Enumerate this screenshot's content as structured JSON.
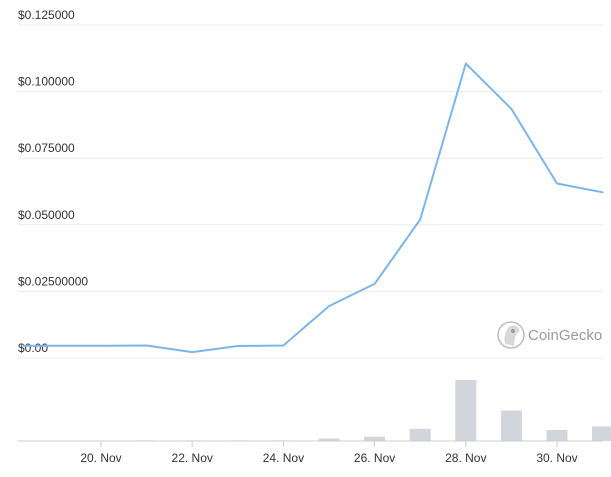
{
  "chart_data": {
    "type": "line",
    "title": "",
    "xlabel": "",
    "ylabel": "",
    "x_tick_labels": [
      "20. Nov",
      "22. Nov",
      "24. Nov",
      "26. Nov",
      "28. Nov",
      "30. Nov"
    ],
    "y_tick_labels": [
      "$0.00",
      "$0.02500000",
      "$0.050000",
      "$0.075000",
      "$0.100000",
      "$0.125000"
    ],
    "ylim": [
      0,
      0.125
    ],
    "x_days_nov": [
      18.3,
      20.1,
      21.0,
      22.0,
      23.0,
      24.0,
      25.0,
      26.0,
      27.0,
      28.0,
      29.0,
      30.0,
      31.0
    ],
    "price": [
      0.0046,
      0.0046,
      0.0047,
      0.0022,
      0.0045,
      0.0047,
      0.0195,
      0.0278,
      0.052,
      0.1105,
      0.0935,
      0.0655,
      0.0622
    ],
    "volume_bars": {
      "x_days_nov": [
        21.0,
        22.0,
        23.0,
        24.0,
        25.0,
        26.0,
        27.0,
        28.0,
        29.0,
        30.0,
        31.0
      ],
      "values": [
        0.01,
        0.003,
        0.002,
        0.004,
        0.04,
        0.07,
        0.2,
        1.0,
        0.5,
        0.18,
        0.24
      ]
    },
    "grid": true,
    "line_color": "#7cb5ec",
    "bar_color": "#d2d5dc"
  },
  "watermark": {
    "text": "CoinGecko",
    "icon": "coingecko-gecko-icon"
  }
}
